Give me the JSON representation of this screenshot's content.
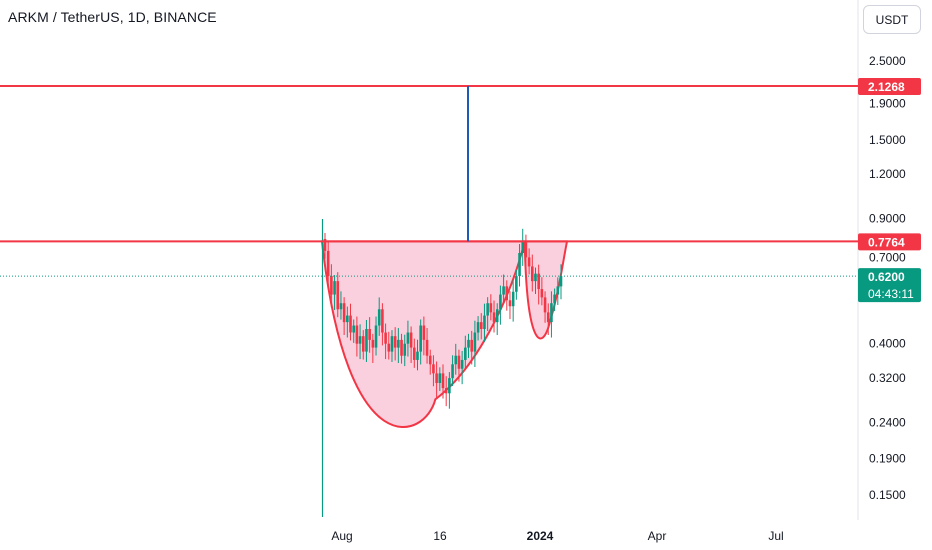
{
  "header": {
    "symbol_title": "ARKM / TetherUS, 1D, BINANCE",
    "currency_button": "USDT"
  },
  "colors": {
    "resistance_line": "#f23645",
    "cup_fill": "#f8bbd0",
    "cup_outline": "#f23645",
    "target_line": "#1e5bb8",
    "vertical_marker": "#089981",
    "candle_up": "#089981",
    "candle_down": "#f23645",
    "current_price_label": "#089981"
  },
  "chart_data": {
    "type": "candlestick",
    "y_scale": "log",
    "ylim": [
      0.13,
      3.0
    ],
    "y_ticks": [
      "2.5000",
      "1.9000",
      "1.5000",
      "1.2000",
      "0.9000",
      "0.7000",
      "0.4000",
      "0.3200",
      "0.2400",
      "0.1900",
      "0.1500"
    ],
    "x_ticks": [
      "Aug",
      "16",
      "2024",
      "Apr",
      "Jul"
    ],
    "price_labels": {
      "target": "2.1268",
      "resistance": "0.7764",
      "current": "0.6200",
      "countdown": "04:43:11"
    },
    "levels": {
      "target": 2.1268,
      "resistance": 0.7764,
      "current": 0.62
    },
    "pattern": "cup and handle",
    "series": [
      {
        "values": [
          0.73,
          0.62,
          0.55,
          0.6,
          0.5,
          0.52,
          0.46,
          0.48,
          0.43,
          0.45,
          0.4,
          0.42,
          0.38,
          0.44,
          0.41,
          0.39,
          0.45,
          0.5,
          0.43,
          0.4,
          0.38,
          0.42,
          0.39,
          0.41,
          0.37,
          0.4,
          0.43,
          0.39,
          0.36,
          0.38,
          0.45,
          0.41,
          0.37,
          0.35,
          0.33,
          0.31,
          0.33,
          0.3,
          0.29,
          0.32,
          0.35,
          0.37,
          0.34,
          0.36,
          0.39,
          0.41,
          0.38,
          0.43,
          0.46,
          0.44,
          0.48,
          0.52,
          0.49,
          0.46,
          0.5,
          0.55,
          0.58,
          0.53,
          0.51,
          0.56,
          0.62,
          0.72,
          0.78,
          0.7,
          0.66,
          0.6,
          0.63,
          0.57,
          0.54,
          0.49,
          0.46,
          0.52,
          0.55,
          0.58,
          0.62
        ]
      }
    ]
  }
}
